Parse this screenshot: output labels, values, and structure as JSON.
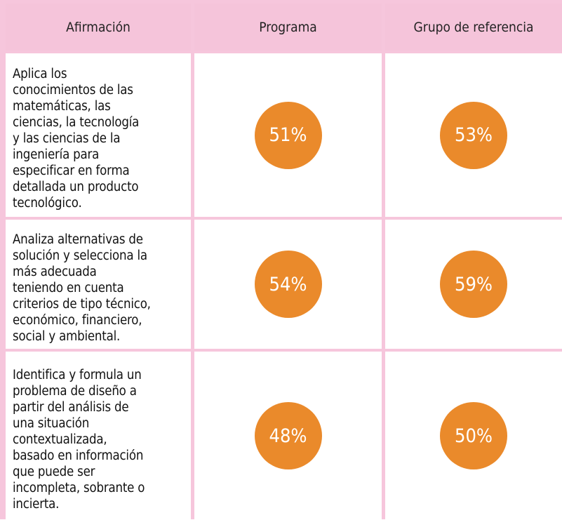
{
  "table": {
    "header": [
      "Afirmación",
      "Programa",
      "Grupo de referencia"
    ],
    "rows": [
      [
        [
          "Aplica  los",
          "conocimientos de las",
          "matemáticas, las",
          "ciencias, la tecnología",
          "y las ciencias de la",
          "ingeniería para",
          "especificar en forma",
          "detallada un producto",
          "tecnológico."
        ],
        "51%",
        "53%"
      ],
      [
        [
          "Analiza alternativas de",
          "solución y selecciona la",
          "más adecuada",
          "teniendo en cuenta",
          "criterios de tipo técnico,",
          "económico, financiero,",
          "social y ambiental."
        ],
        "54%",
        "59%"
      ],
      [
        [
          "Identifica y formula un",
          "problema de diseño a",
          "partir del análisis de",
          "una situación",
          "contextualizada,",
          "basado en  información",
          "que puede ser",
          "incompleta, sobrante o",
          "incierta."
        ],
        "48%",
        "50%"
      ]
    ]
  }
}
